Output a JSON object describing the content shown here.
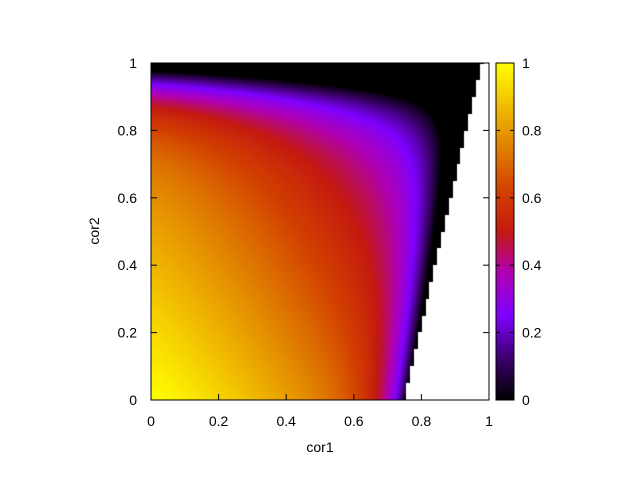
{
  "chart_data": {
    "type": "heatmap",
    "title": "",
    "xlabel": "cor1",
    "ylabel": "cor2",
    "xlim": [
      0,
      1
    ],
    "ylim": [
      0,
      1
    ],
    "xticks": [
      "0",
      "0.2",
      "0.4",
      "0.6",
      "0.8",
      "1"
    ],
    "yticks": [
      "0",
      "0.2",
      "0.4",
      "0.6",
      "0.8",
      "1"
    ],
    "colorbar": {
      "range": [
        0,
        1
      ],
      "ticks": [
        "0",
        "0.2",
        "0.4",
        "0.6",
        "0.8",
        "1"
      ],
      "palette": "black-purple-red-yellow (gnuplot pm3d default)",
      "colors": [
        "#000000",
        "#8000ff",
        "#c01f00",
        "#ffd000",
        "#ffff00"
      ]
    },
    "valid_region": {
      "description": "non-white only where cor1 < boundary(cor2); white elsewhere",
      "boundary_points": [
        [
          0.75,
          0.0
        ],
        [
          0.98,
          1.0
        ]
      ]
    },
    "grid_samples": [
      {
        "cor1": 0.0,
        "cor2": 0.0,
        "value": 1.0
      },
      {
        "cor1": 0.3,
        "cor2": 0.0,
        "value": 0.8
      },
      {
        "cor1": 0.6,
        "cor2": 0.0,
        "value": 0.45
      },
      {
        "cor1": 0.0,
        "cor2": 0.4,
        "value": 0.75
      },
      {
        "cor1": 0.4,
        "cor2": 0.4,
        "value": 0.62
      },
      {
        "cor1": 0.0,
        "cor2": 0.7,
        "value": 0.5
      },
      {
        "cor1": 0.0,
        "cor2": 0.85,
        "value": 0.2
      },
      {
        "cor1": 0.0,
        "cor2": 1.0,
        "value": 0.0
      }
    ]
  }
}
